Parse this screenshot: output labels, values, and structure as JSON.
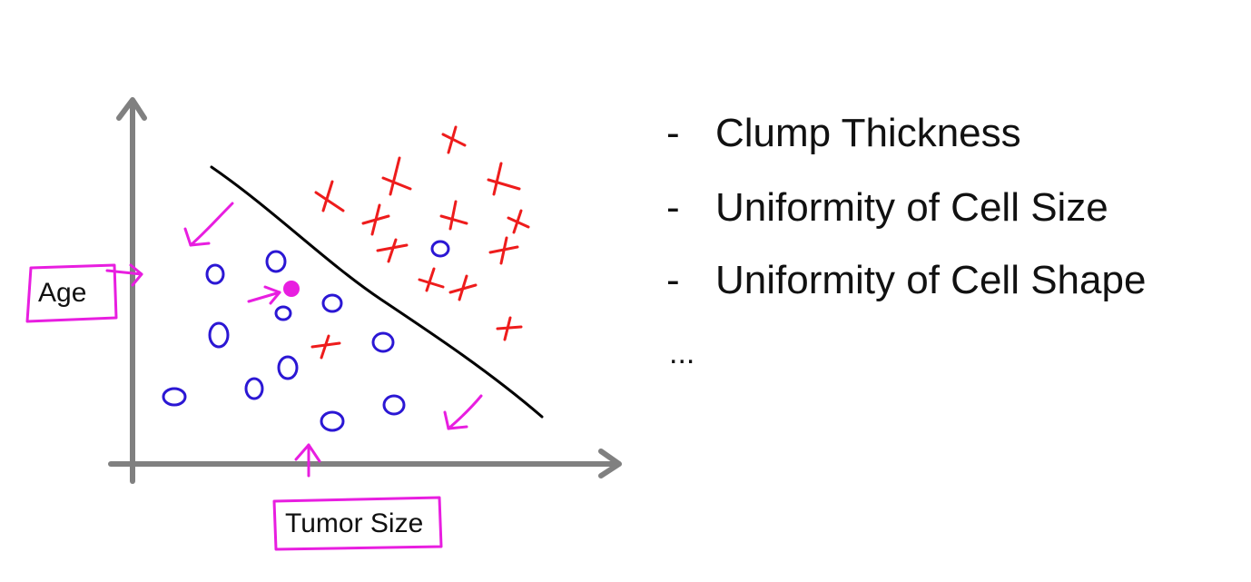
{
  "plot": {
    "y_label": "Age",
    "x_label": "Tumor Size"
  },
  "features": {
    "bullet": "-",
    "items": [
      "Clump Thickness",
      "Uniformity of Cell Size",
      "Uniformity of Cell Shape"
    ],
    "more": "..."
  },
  "colors": {
    "malignant": "#ee1c1c",
    "benign": "#2b17d4",
    "annotation": "#e81ee0",
    "axis": "#808080",
    "boundary": "#000000"
  }
}
